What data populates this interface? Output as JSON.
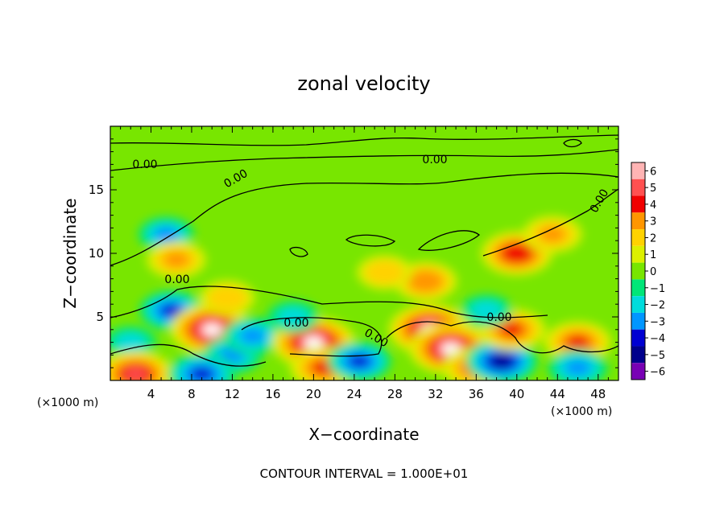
{
  "chart_data": {
    "type": "heatmap",
    "title": "zonal velocity",
    "xlabel": "X−coordinate",
    "ylabel": "Z−coordinate",
    "x_unit_left": "(×1000 m)",
    "x_unit_right": "(×1000 m)",
    "footer": "CONTOUR INTERVAL = 1.000E+01",
    "xlim": [
      0,
      50
    ],
    "ylim": [
      0,
      20
    ],
    "x_ticks": [
      "4",
      "8",
      "12",
      "16",
      "20",
      "24",
      "28",
      "32",
      "36",
      "40",
      "44",
      "48"
    ],
    "y_ticks": [
      "5",
      "10",
      "15"
    ],
    "colorbar": {
      "levels": [
        "6",
        "5",
        "4",
        "3",
        "2",
        "1",
        "0",
        "−1",
        "−2",
        "−3",
        "−4",
        "−5",
        "−6"
      ],
      "colors": [
        "#ffb4b4",
        "#ff5050",
        "#f00000",
        "#ff9600",
        "#ffd200",
        "#dcf000",
        "#78e600",
        "#00e678",
        "#00dcdc",
        "#0096ff",
        "#0000d2",
        "#00008c",
        "#7800b4"
      ]
    },
    "contour_labels": [
      "0.00",
      "0.00",
      "0.00",
      "0.00",
      "0.00",
      "0.00",
      "0.00",
      "0.00"
    ],
    "background_value": 0.5,
    "features": [
      {
        "x": 5.5,
        "z": 11.5,
        "value": -2.5
      },
      {
        "x": 6,
        "z": 5.5,
        "value": -3.5
      },
      {
        "x": 6.5,
        "z": 9.5,
        "value": 3
      },
      {
        "x": 10,
        "z": 4,
        "value": 6
      },
      {
        "x": 11.5,
        "z": 6.5,
        "value": 2.5
      },
      {
        "x": 12,
        "z": 2,
        "value": -3
      },
      {
        "x": 14,
        "z": 3.5,
        "value": -3
      },
      {
        "x": 20,
        "z": 3,
        "value": 6
      },
      {
        "x": 21,
        "z": 1,
        "value": 4
      },
      {
        "x": 24.5,
        "z": 1.5,
        "value": -3.5
      },
      {
        "x": 31,
        "z": 7.8,
        "value": 3.5
      },
      {
        "x": 27,
        "z": 8.5,
        "value": 2.5
      },
      {
        "x": 31.5,
        "z": 4,
        "value": 6
      },
      {
        "x": 33.5,
        "z": 2.5,
        "value": 6
      },
      {
        "x": 36,
        "z": 1,
        "value": 4
      },
      {
        "x": 38.5,
        "z": 1.5,
        "value": -4.5
      },
      {
        "x": 39.5,
        "z": 4,
        "value": 4
      },
      {
        "x": 40,
        "z": 10,
        "value": 4.5
      },
      {
        "x": 43.5,
        "z": 11.5,
        "value": 3
      },
      {
        "x": 37,
        "z": 5.5,
        "value": -2
      },
      {
        "x": 46,
        "z": 3,
        "value": 4
      },
      {
        "x": 46,
        "z": 1,
        "value": -3
      },
      {
        "x": 18,
        "z": 5,
        "value": -2
      },
      {
        "x": 2,
        "z": 3,
        "value": -2
      },
      {
        "x": 2.5,
        "z": 0.5,
        "value": 5
      },
      {
        "x": 9,
        "z": 0.5,
        "value": -4
      }
    ]
  }
}
